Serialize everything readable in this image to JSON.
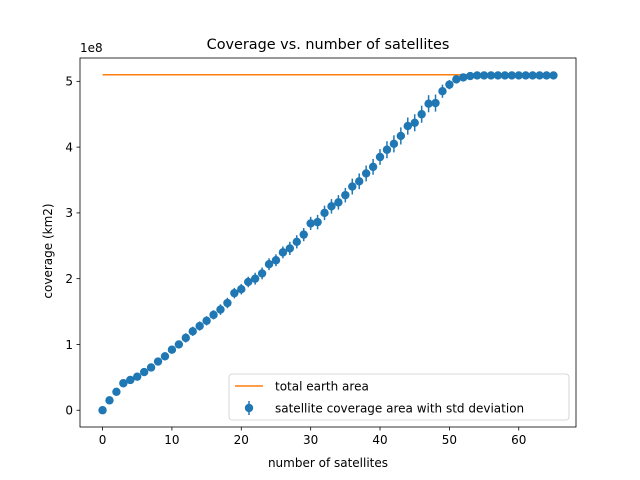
{
  "chart_data": {
    "type": "scatter",
    "title": "Coverage vs. number of satellites",
    "xlabel": "number of satellites",
    "ylabel": "coverage (km2)",
    "y_offset_label": "1e8",
    "xlim": [
      -3.25,
      68.25
    ],
    "ylim": [
      -0.255,
      5.355
    ],
    "y_units": "1e8 km2",
    "xticks": [
      0,
      10,
      20,
      30,
      40,
      50,
      60
    ],
    "xtick_labels": [
      "0",
      "10",
      "20",
      "30",
      "40",
      "50",
      "60"
    ],
    "yticks": [
      0,
      1,
      2,
      3,
      4,
      5
    ],
    "ytick_labels": [
      "0",
      "1",
      "2",
      "3",
      "4",
      "5"
    ],
    "grid": false,
    "legend_position": "lower right",
    "series": [
      {
        "name": "total earth area",
        "kind": "line",
        "color": "#ff7f0e",
        "x": [
          0,
          65
        ],
        "y": [
          5.1,
          5.1
        ]
      },
      {
        "name": "satellite coverage area with std deviation",
        "kind": "errorbar",
        "color": "#1f77b4",
        "x": [
          0,
          1,
          2,
          3,
          4,
          5,
          6,
          7,
          8,
          9,
          10,
          11,
          12,
          13,
          14,
          15,
          16,
          17,
          18,
          19,
          20,
          21,
          22,
          23,
          24,
          25,
          26,
          27,
          28,
          29,
          30,
          31,
          32,
          33,
          34,
          35,
          36,
          37,
          38,
          39,
          40,
          41,
          42,
          43,
          44,
          45,
          46,
          47,
          48,
          49,
          50,
          51,
          52,
          53,
          54,
          55,
          56,
          57,
          58,
          59,
          60,
          61,
          62,
          63,
          64,
          65
        ],
        "y": [
          0.0,
          0.15,
          0.28,
          0.41,
          0.46,
          0.51,
          0.58,
          0.65,
          0.74,
          0.82,
          0.92,
          1.0,
          1.1,
          1.2,
          1.28,
          1.36,
          1.45,
          1.53,
          1.63,
          1.78,
          1.84,
          1.95,
          2.0,
          2.08,
          2.22,
          2.28,
          2.4,
          2.46,
          2.56,
          2.67,
          2.84,
          2.86,
          3.0,
          3.1,
          3.16,
          3.27,
          3.4,
          3.48,
          3.6,
          3.7,
          3.85,
          3.96,
          4.05,
          4.17,
          4.32,
          4.37,
          4.5,
          4.66,
          4.67,
          4.85,
          4.95,
          5.03,
          5.06,
          5.08,
          5.09,
          5.09,
          5.09,
          5.09,
          5.09,
          5.09,
          5.09,
          5.09,
          5.09,
          5.09,
          5.09,
          5.09
        ],
        "err": [
          0.0,
          0.03,
          0.04,
          0.04,
          0.05,
          0.05,
          0.05,
          0.05,
          0.06,
          0.06,
          0.06,
          0.06,
          0.07,
          0.07,
          0.07,
          0.07,
          0.07,
          0.08,
          0.08,
          0.08,
          0.08,
          0.08,
          0.09,
          0.09,
          0.09,
          0.09,
          0.09,
          0.1,
          0.1,
          0.1,
          0.1,
          0.11,
          0.11,
          0.11,
          0.11,
          0.11,
          0.12,
          0.12,
          0.12,
          0.12,
          0.12,
          0.13,
          0.13,
          0.13,
          0.13,
          0.13,
          0.13,
          0.13,
          0.13,
          0.1,
          0.07,
          0.05,
          0.03,
          0.02,
          0.01,
          0.01,
          0.01,
          0.01,
          0.01,
          0.01,
          0.01,
          0.01,
          0.01,
          0.01,
          0.01,
          0.01
        ]
      }
    ]
  }
}
